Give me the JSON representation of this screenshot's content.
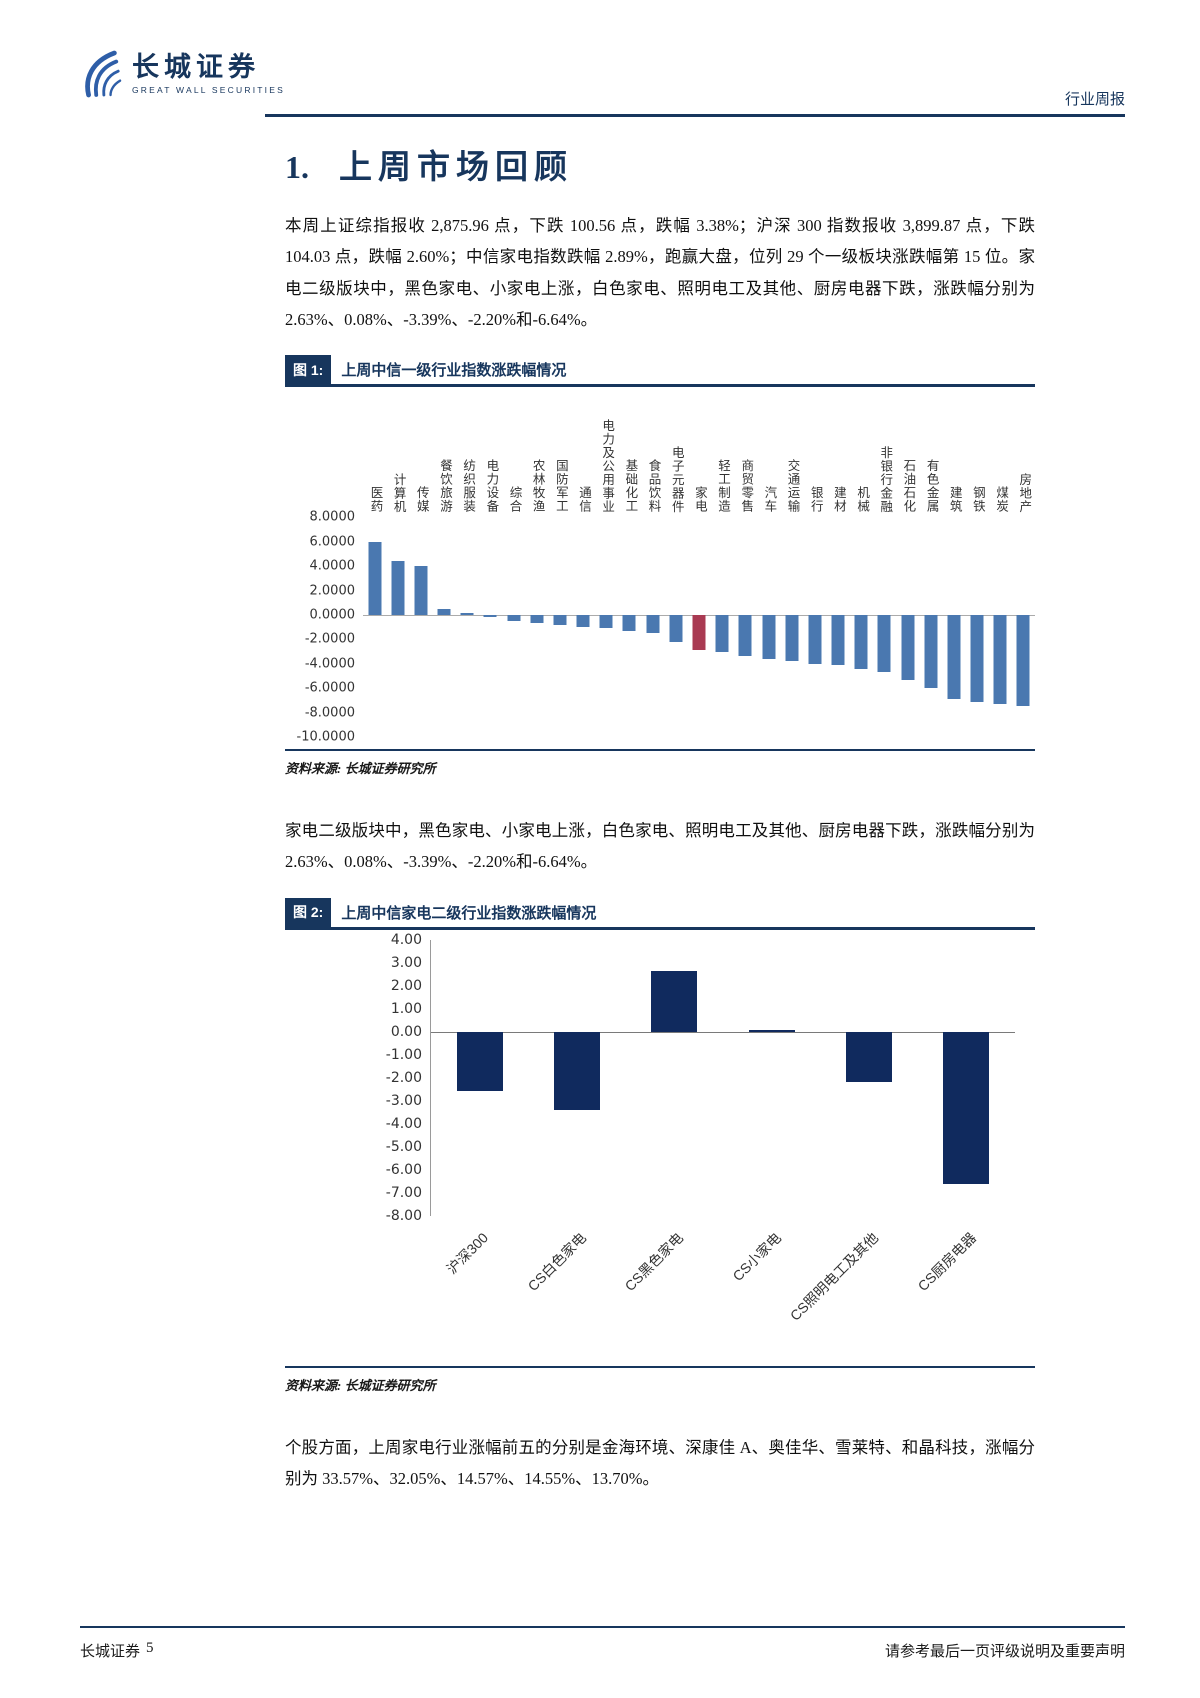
{
  "header": {
    "brand_cn": "长城证券",
    "brand_en": "GREAT WALL SECURITIES",
    "doc_type": "行业周报"
  },
  "section_title": {
    "number": "1.",
    "text": "上周市场回顾"
  },
  "paragraphs": {
    "p1": "本周上证综指报收 2,875.96 点，下跌 100.56 点，跌幅 3.38%；沪深 300 指数报收 3,899.87 点，下跌 104.03 点，跌幅 2.60%；中信家电指数跌幅 2.89%，跑赢大盘，位列 29 个一级板块涨跌幅第 15 位。家电二级版块中，黑色家电、小家电上涨，白色家电、照明电工及其他、厨房电器下跌，涨跌幅分别为 2.63%、0.08%、-3.39%、-2.20%和-6.64%。",
    "p2": "家电二级版块中，黑色家电、小家电上涨，白色家电、照明电工及其他、厨房电器下跌，涨跌幅分别为 2.63%、0.08%、-3.39%、-2.20%和-6.64%。",
    "p3": "个股方面，上周家电行业涨幅前五的分别是金海环境、深康佳 A、奥佳华、雪莱特、和晶科技，涨幅分别为 33.57%、32.05%、14.57%、14.55%、13.70%。"
  },
  "figures": {
    "fig1_label": "图 1:",
    "fig2_label": "图 2:",
    "source": "资料来源: 长城证券研究所"
  },
  "chart_data": [
    {
      "type": "bar",
      "title": "上周中信一级行业指数涨跌幅情况",
      "categories": [
        "医药",
        "计算机",
        "传媒",
        "餐饮旅游",
        "纺织服装",
        "电力设备",
        "综合",
        "农林牧渔",
        "国防军工",
        "通信",
        "电力及公用事业",
        "基础化工",
        "食品饮料",
        "电子元器件",
        "家电",
        "轻工制造",
        "商贸零售",
        "汽车",
        "交通运输",
        "银行",
        "建材",
        "机械",
        "非银行金融",
        "石油石化",
        "有色金属",
        "建筑",
        "钢铁",
        "煤炭",
        "房地产"
      ],
      "values": [
        6.0,
        4.4,
        4.0,
        0.5,
        0.05,
        -0.15,
        -0.5,
        -0.65,
        -0.8,
        -1.0,
        -1.1,
        -1.3,
        -1.5,
        -2.2,
        -2.89,
        -3.0,
        -3.4,
        -3.6,
        -3.8,
        -4.0,
        -4.1,
        -4.4,
        -4.7,
        -5.3,
        -6.0,
        -6.9,
        -7.1,
        -7.3,
        -7.5
      ],
      "ylim": [
        -10,
        8
      ],
      "yticks": [
        "8.0000",
        "6.0000",
        "4.0000",
        "2.0000",
        "0.0000",
        "-2.0000",
        "-4.0000",
        "-6.0000",
        "-8.0000",
        "-10.0000"
      ],
      "bar_color": "#4A78B0",
      "highlight": {
        "index": 14,
        "color": "#A93A52",
        "category": "家电"
      },
      "xlabel": "",
      "ylabel": "",
      "grid": false,
      "legend": "none"
    },
    {
      "type": "bar",
      "title": "上周中信家电二级行业指数涨跌幅情况",
      "categories": [
        "沪深300",
        "CS白色家电",
        "CS黑色家电",
        "CS小家电",
        "CS照明电工及其他",
        "CS厨房电器"
      ],
      "values": [
        -2.6,
        -3.39,
        2.63,
        0.08,
        -2.2,
        -6.64
      ],
      "ylim": [
        -8,
        4
      ],
      "yticks": [
        "4.00",
        "3.00",
        "2.00",
        "1.00",
        "0.00",
        "-1.00",
        "-2.00",
        "-3.00",
        "-4.00",
        "-5.00",
        "-6.00",
        "-7.00",
        "-8.00"
      ],
      "bar_color": "#102A5E",
      "xlabel": "",
      "ylabel": "",
      "grid": false,
      "legend": "none"
    }
  ],
  "footer": {
    "brand": "长城证券",
    "page": "5",
    "disclaimer": "请参考最后一页评级说明及重要声明"
  },
  "colors": {
    "navy": "#17365D",
    "bar_blue": "#4A78B0",
    "bar_red": "#A93A52",
    "bar_dark_navy": "#102A5E"
  }
}
